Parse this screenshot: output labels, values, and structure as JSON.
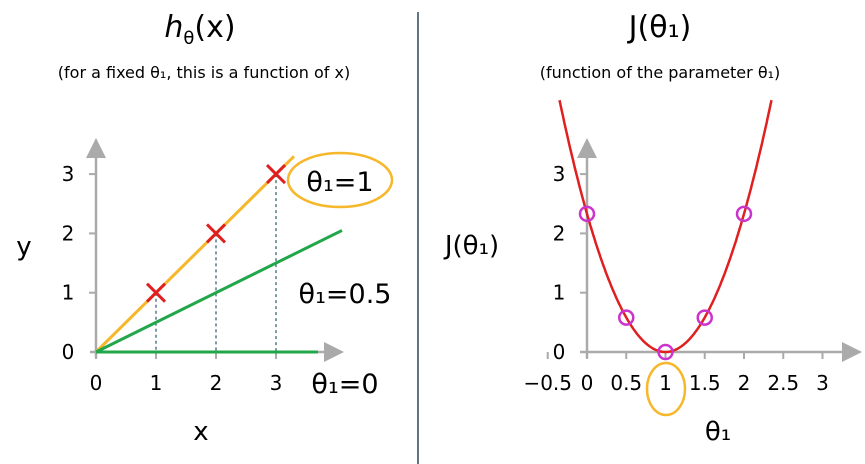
{
  "left": {
    "title_main": "h",
    "title_sub": "θ",
    "title_rest": "(x)",
    "subtitle": "(for a fixed θ₁, this is a function of x)"
  },
  "right": {
    "title": "J(θ₁)",
    "subtitle": "(function of the parameter θ₁)"
  },
  "colors": {
    "axis": "#aaaaaa",
    "orange": "#f7b72b",
    "green": "#22a64a",
    "red": "#e02020",
    "magenta": "#cc33cc",
    "dashed": "#2a5a6a"
  },
  "chart_data": [
    {
      "type": "line",
      "title": "",
      "xlabel": "x",
      "ylabel": "y",
      "xticks": [
        "0",
        "1",
        "2",
        "3"
      ],
      "yticks": [
        "0",
        "1",
        "2",
        "3"
      ],
      "xlim": [
        0,
        4
      ],
      "ylim": [
        0,
        3.4
      ],
      "points": [
        {
          "x": 1,
          "y": 1
        },
        {
          "x": 2,
          "y": 2
        },
        {
          "x": 3,
          "y": 3
        }
      ],
      "series": [
        {
          "name": "θ₁=1",
          "slope": 1,
          "x": [
            0,
            3.3
          ],
          "color": "#f7b72b"
        },
        {
          "name": "θ₁=0.5",
          "slope": 0.5,
          "x": [
            0,
            4.1
          ],
          "color": "#22a64a"
        },
        {
          "name": "θ₁=0",
          "slope": 0,
          "x": [
            0,
            3.7
          ],
          "color": "#22a64a"
        }
      ],
      "annotations": [
        {
          "text": "θ₁=1",
          "circled": true
        },
        {
          "text": "θ₁=0.5"
        },
        {
          "text": "θ₁=0"
        }
      ]
    },
    {
      "type": "line",
      "title": "",
      "xlabel": "θ₁",
      "ylabel": "J(θ₁)",
      "xticks": [
        "−0.5",
        "0",
        "0.5",
        "1",
        "1.5",
        "2",
        "2.5",
        "3"
      ],
      "yticks": [
        "0",
        "1",
        "2",
        "3"
      ],
      "xlim": [
        -0.5,
        3
      ],
      "ylim": [
        0,
        3.4
      ],
      "curve": {
        "formula": "2.33*(θ-1)^2",
        "color": "#e02020"
      },
      "points": [
        {
          "x": 0,
          "y": 2.33
        },
        {
          "x": 0.5,
          "y": 0.58
        },
        {
          "x": 1,
          "y": 0
        },
        {
          "x": 1.5,
          "y": 0.58
        },
        {
          "x": 2,
          "y": 2.33
        }
      ],
      "highlight_tick": "1"
    }
  ]
}
